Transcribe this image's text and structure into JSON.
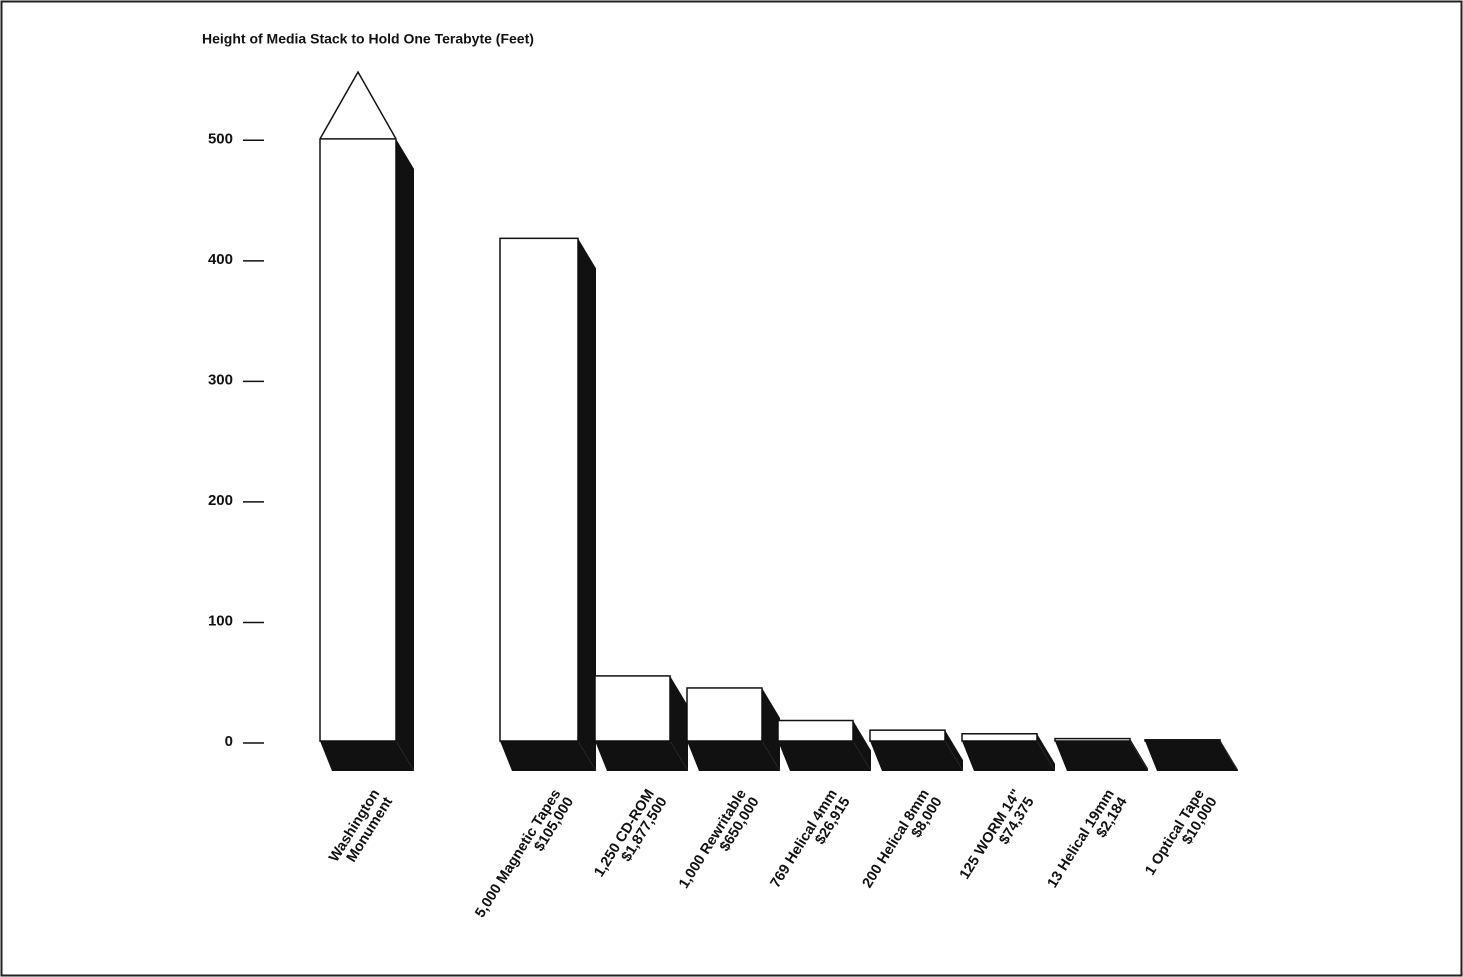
{
  "chart_data": {
    "type": "bar3d",
    "title": "Height of Media Stack to Hold One Terabyte (Feet)",
    "categories": [
      [
        "Washington",
        "Monument"
      ],
      [
        "5,000 Magnetic Tapes",
        "$105,000"
      ],
      [
        "1,250 CD-ROM",
        "$1,877,500"
      ],
      [
        "1,000 Rewritable",
        "$650,000"
      ],
      [
        "769 Helical 4mm",
        "$26,915"
      ],
      [
        "200 Helical 8mm",
        "$8,000"
      ],
      [
        "125 WORM 14\"",
        "$74,375"
      ],
      [
        "13 Helical 19mm",
        "$2,184"
      ],
      [
        "1 Optical Tape",
        "$10,000"
      ]
    ],
    "values": [
      555,
      417,
      54,
      44,
      17,
      9,
      6,
      2,
      1
    ],
    "color": "#ffffff",
    "ylim": [
      0,
      555
    ],
    "yticks": [
      0,
      100,
      200,
      300,
      400,
      500
    ],
    "grid": false
  }
}
